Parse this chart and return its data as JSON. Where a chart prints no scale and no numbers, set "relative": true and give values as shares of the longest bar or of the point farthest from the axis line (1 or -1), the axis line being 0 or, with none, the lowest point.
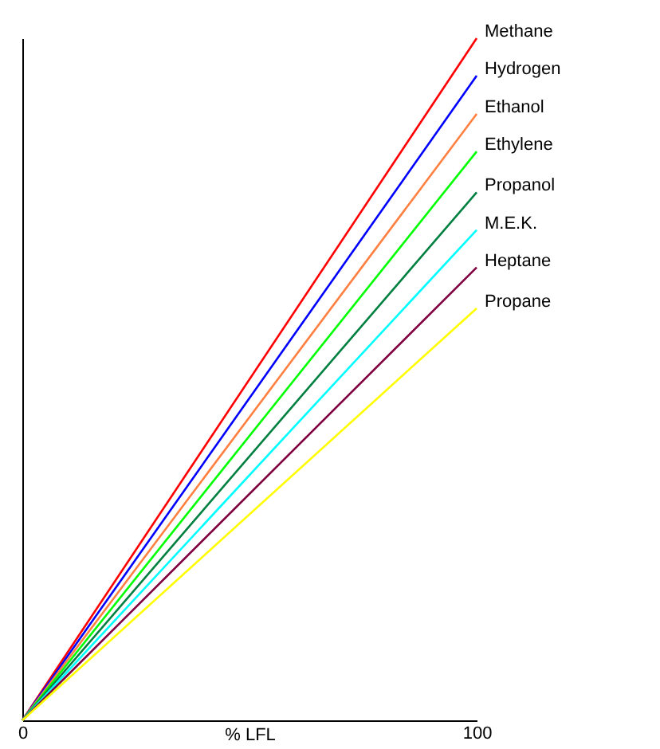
{
  "chart_data": {
    "type": "line",
    "relative": true,
    "xlabel": "% LFL",
    "x": [
      0,
      100
    ],
    "xlim": [
      0,
      100
    ],
    "xticks": [
      0,
      100
    ],
    "grid": false,
    "legend": false,
    "marker": "none",
    "line_style": "solid",
    "series": [
      {
        "name": "Methane",
        "color": "#ff0000",
        "values": [
          0,
          1
        ]
      },
      {
        "name": "Hydrogen",
        "color": "#0000ff",
        "values": [
          0,
          0.945
        ]
      },
      {
        "name": "Ethanol",
        "color": "#ff8040",
        "values": [
          0,
          0.889
        ]
      },
      {
        "name": "Ethylene",
        "color": "#00ff00",
        "values": [
          0,
          0.834
        ]
      },
      {
        "name": "Propanol",
        "color": "#008040",
        "values": [
          0,
          0.774
        ]
      },
      {
        "name": "M.E.K.",
        "color": "#00ffff",
        "values": [
          0,
          0.719
        ]
      },
      {
        "name": "Heptane",
        "color": "#800040",
        "values": [
          0,
          0.664
        ]
      },
      {
        "name": "Propane",
        "color": "#ffff00",
        "values": [
          0,
          0.604
        ]
      }
    ]
  }
}
